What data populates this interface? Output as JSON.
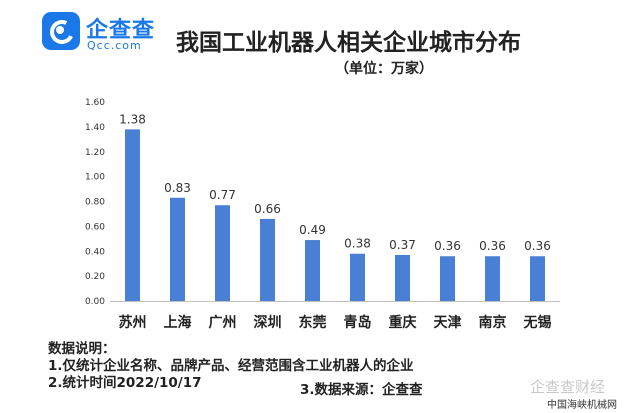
{
  "logo": {
    "name_cn": "企查查",
    "name_en": "Qcc.com"
  },
  "chart_data": {
    "type": "bar",
    "title": "我国工业机器人相关企业城市分布",
    "subtitle": "（单位：万家）",
    "categories": [
      "苏州",
      "上海",
      "广州",
      "深圳",
      "东莞",
      "青岛",
      "重庆",
      "天津",
      "南京",
      "无锡"
    ],
    "values": [
      1.38,
      0.83,
      0.77,
      0.66,
      0.49,
      0.38,
      0.37,
      0.36,
      0.36,
      0.36
    ],
    "value_labels": [
      "1.38",
      "0.83",
      "0.77",
      "0.66",
      "0.49",
      "0.38",
      "0.37",
      "0.36",
      "0.36",
      "0.36"
    ],
    "yticks": [
      "0.00",
      "0.20",
      "0.40",
      "0.60",
      "0.80",
      "1.00",
      "1.20",
      "1.40",
      "1.60"
    ],
    "ylim": [
      0,
      1.6
    ],
    "grid": false,
    "bar_color": "#4a7fd6"
  },
  "notes": {
    "heading": "数据说明：",
    "line1": "1.仅统计企业名称、品牌产品、经营范围含工业机器人的企业",
    "line2": "2.统计时间2022/10/17",
    "line3": "3.数据来源：企查查"
  },
  "watermark": {
    "text": "企查查财经",
    "source": "中国海峡机械网"
  }
}
